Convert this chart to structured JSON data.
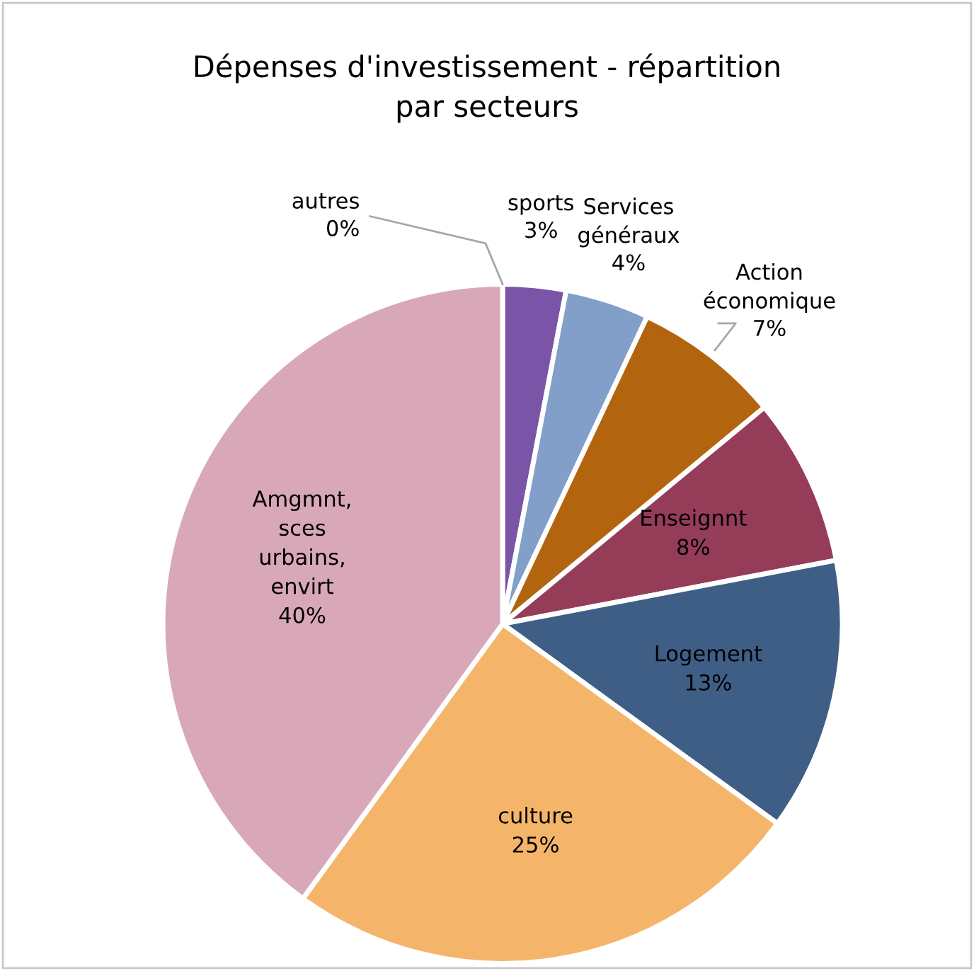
{
  "chart_data": {
    "type": "pie",
    "title": "Dépenses d'investissement - répartition par secteurs",
    "categories": [
      "autres",
      "sports",
      "Services généraux",
      "Action économique",
      "Enseignnt",
      "Logement",
      "culture",
      "Amgmnt, sces urbains, envirt"
    ],
    "values": [
      0,
      3,
      4,
      7,
      8,
      13,
      25,
      40
    ],
    "value_labels": [
      "0%",
      "3%",
      "4%",
      "7%",
      "8%",
      "13%",
      "25%",
      "40%"
    ],
    "colors": [
      "#ffffff",
      "#7a54a6",
      "#819fc8",
      "#b3640f",
      "#953d58",
      "#3f5e86",
      "#f4b56b",
      "#d9a8b8"
    ]
  }
}
